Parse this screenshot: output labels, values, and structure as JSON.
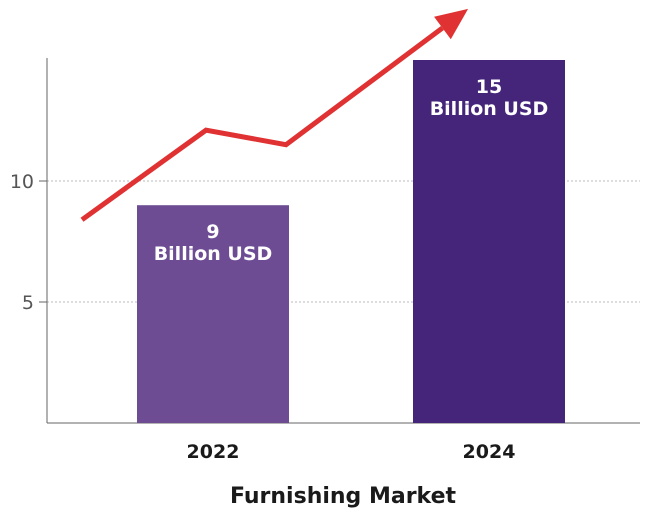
{
  "chart_data": {
    "type": "bar",
    "title": "",
    "xlabel": "Furnishing Market",
    "ylabel": "",
    "categories": [
      "2022",
      "2024"
    ],
    "values": [
      9,
      15
    ],
    "data_labels": [
      [
        "9",
        "Billion USD"
      ],
      [
        "15",
        "Billion USD"
      ]
    ],
    "ylim": [
      0,
      15
    ],
    "yticks": [
      5,
      10
    ],
    "grid": true,
    "bar_colors": [
      "#6d4c94",
      "#44257a"
    ],
    "trend_arrow": {
      "color": "#e03232",
      "values": [
        8.4,
        12.1,
        11.5,
        16.4
      ]
    }
  }
}
